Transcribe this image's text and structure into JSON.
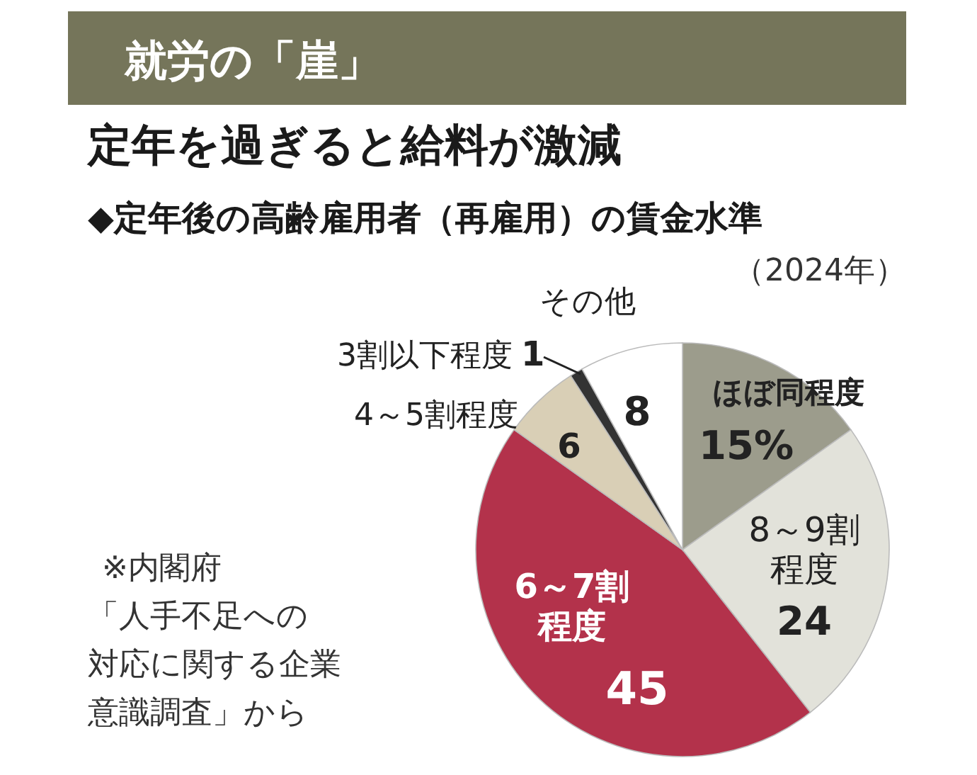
{
  "chart_data": {
    "type": "pie",
    "title": "就労の「崖」",
    "subtitle": "定年を過ぎると給料が激減",
    "xlabel": "◆定年後の高齢雇用者（再雇用）の賃金水準",
    "categories": [
      "ほぼ同程度",
      "8～9割程度",
      "6～7割程度",
      "4～5割程度",
      "3割以下程度",
      "その他"
    ],
    "values": [
      15,
      24,
      45,
      6,
      1,
      8
    ],
    "value_labels": [
      "15%",
      "24",
      "45",
      "6",
      "1",
      "8"
    ],
    "colors": [
      "#9c9c8c",
      "#e2e2da",
      "#b3324b",
      "#d9cfb6",
      "#333333",
      "#ffffff"
    ],
    "annotations": [
      "（2024年）",
      "※内閣府「人手不足への対応に関する企業意識調査」から"
    ]
  }
}
